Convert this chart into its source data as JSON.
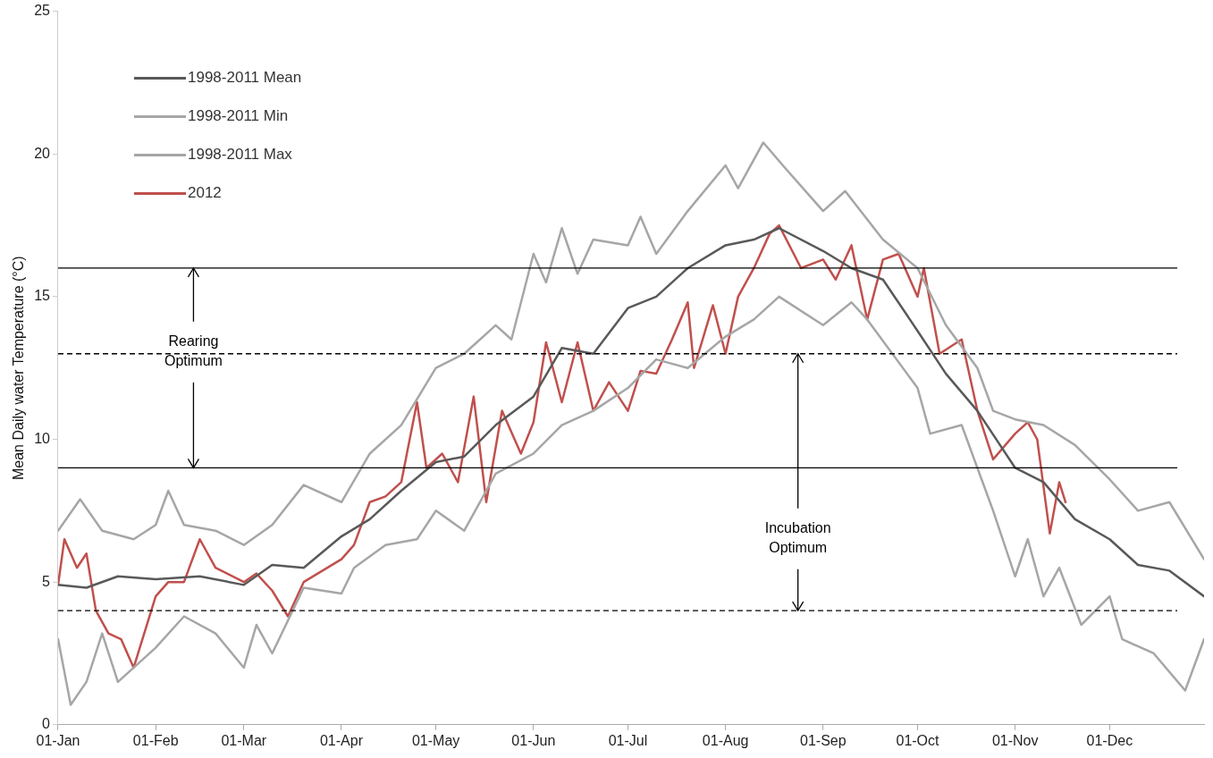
{
  "chart_data": {
    "type": "line",
    "ylabel": "Mean Daily water Temperature (°C)",
    "xlim": [
      "--01-01",
      "--12-31"
    ],
    "xticks": [
      {
        "value": "--01-01",
        "label": "01-Jan"
      },
      {
        "value": "--02-01",
        "label": "01-Feb"
      },
      {
        "value": "--03-01",
        "label": "01-Mar"
      },
      {
        "value": "--04-01",
        "label": "01-Apr"
      },
      {
        "value": "--05-01",
        "label": "01-May"
      },
      {
        "value": "--06-01",
        "label": "01-Jun"
      },
      {
        "value": "--07-01",
        "label": "01-Jul"
      },
      {
        "value": "--08-01",
        "label": "01-Aug"
      },
      {
        "value": "--09-01",
        "label": "01-Sep"
      },
      {
        "value": "--10-01",
        "label": "01-Oct"
      },
      {
        "value": "--11-01",
        "label": "01-Nov"
      },
      {
        "value": "--12-01",
        "label": "01-Dec"
      }
    ],
    "ylim": [
      0,
      25
    ],
    "yticks": [
      0,
      5,
      10,
      15,
      20,
      25
    ],
    "grid": false,
    "legend": "top left",
    "marker": "none",
    "line_style": "solid",
    "series": [
      {
        "name": "1998-2011 Mean",
        "color": "#595959",
        "x": [
          "--01-01",
          "--01-10",
          "--01-20",
          "--02-01",
          "--02-15",
          "--03-01",
          "--03-10",
          "--03-20",
          "--04-01",
          "--04-10",
          "--04-20",
          "--05-01",
          "--05-10",
          "--05-20",
          "--06-01",
          "--06-10",
          "--06-20",
          "--07-01",
          "--07-10",
          "--07-20",
          "--08-01",
          "--08-10",
          "--08-18",
          "--09-01",
          "--09-10",
          "--09-20",
          "--10-01",
          "--10-10",
          "--10-20",
          "--11-01",
          "--11-10",
          "--11-20",
          "--12-01",
          "--12-10",
          "--12-20",
          "--12-31"
        ],
        "values": [
          4.9,
          4.8,
          5.2,
          5.1,
          5.2,
          4.9,
          5.6,
          5.5,
          6.6,
          7.2,
          8.2,
          9.2,
          9.4,
          10.5,
          11.5,
          13.2,
          13.0,
          14.6,
          15.0,
          16.0,
          16.8,
          17.0,
          17.4,
          16.6,
          16.0,
          15.6,
          13.8,
          12.3,
          11.0,
          9.0,
          8.5,
          7.2,
          6.5,
          5.6,
          5.4,
          4.5
        ]
      },
      {
        "name": "1998-2011 Min",
        "color": "#a6a6a6",
        "x": [
          "--01-01",
          "--01-05",
          "--01-10",
          "--01-15",
          "--01-20",
          "--02-01",
          "--02-10",
          "--02-20",
          "--03-01",
          "--03-05",
          "--03-10",
          "--03-20",
          "--04-01",
          "--04-05",
          "--04-15",
          "--04-25",
          "--05-01",
          "--05-10",
          "--05-20",
          "--06-01",
          "--06-10",
          "--06-20",
          "--07-01",
          "--07-10",
          "--07-20",
          "--08-01",
          "--08-10",
          "--08-18",
          "--09-01",
          "--09-10",
          "--09-15",
          "--10-01",
          "--10-05",
          "--10-15",
          "--10-20",
          "--10-25",
          "--11-01",
          "--11-05",
          "--11-10",
          "--11-15",
          "--11-22",
          "--12-01",
          "--12-05",
          "--12-15",
          "--12-25",
          "--12-31"
        ],
        "values": [
          3.0,
          0.7,
          1.5,
          3.2,
          1.5,
          2.7,
          3.8,
          3.2,
          2.0,
          3.5,
          2.5,
          4.8,
          4.6,
          5.5,
          6.3,
          6.5,
          7.5,
          6.8,
          8.8,
          9.5,
          10.5,
          11.0,
          11.8,
          12.8,
          12.5,
          13.6,
          14.2,
          15.0,
          14.0,
          14.8,
          14.2,
          11.8,
          10.2,
          10.5,
          9.0,
          7.5,
          5.2,
          6.5,
          4.5,
          5.5,
          3.5,
          4.5,
          3.0,
          2.5,
          1.2,
          3.0
        ]
      },
      {
        "name": "1998-2011 Max",
        "color": "#a6a6a6",
        "x": [
          "--01-01",
          "--01-08",
          "--01-15",
          "--01-25",
          "--02-01",
          "--02-05",
          "--02-10",
          "--02-20",
          "--03-01",
          "--03-10",
          "--03-20",
          "--04-01",
          "--04-10",
          "--04-20",
          "--05-01",
          "--05-10",
          "--05-20",
          "--05-25",
          "--06-01",
          "--06-05",
          "--06-10",
          "--06-15",
          "--06-20",
          "--07-01",
          "--07-05",
          "--07-10",
          "--07-20",
          "--08-01",
          "--08-05",
          "--08-13",
          "--08-20",
          "--09-01",
          "--09-08",
          "--09-20",
          "--10-01",
          "--10-10",
          "--10-20",
          "--10-25",
          "--11-01",
          "--11-10",
          "--11-20",
          "--12-01",
          "--12-10",
          "--12-20",
          "--12-31"
        ],
        "values": [
          6.8,
          7.9,
          6.8,
          6.5,
          7.0,
          8.2,
          7.0,
          6.8,
          6.3,
          7.0,
          8.4,
          7.8,
          9.5,
          10.5,
          12.5,
          13.0,
          14.0,
          13.5,
          16.5,
          15.5,
          17.4,
          15.8,
          17.0,
          16.8,
          17.8,
          16.5,
          18.0,
          19.6,
          18.8,
          20.4,
          19.5,
          18.0,
          18.7,
          17.0,
          16.0,
          14.0,
          12.5,
          11.0,
          10.7,
          10.5,
          9.8,
          8.6,
          7.5,
          7.8,
          5.8
        ]
      },
      {
        "name": "2012",
        "color": "#c0504d",
        "x": [
          "--01-01",
          "--01-03",
          "--01-07",
          "--01-10",
          "--01-13",
          "--01-17",
          "--01-21",
          "--01-25",
          "--02-01",
          "--02-05",
          "--02-10",
          "--02-15",
          "--02-20",
          "--03-01",
          "--03-05",
          "--03-10",
          "--03-15",
          "--03-20",
          "--04-01",
          "--04-05",
          "--04-10",
          "--04-15",
          "--04-20",
          "--04-25",
          "--04-28",
          "--05-03",
          "--05-08",
          "--05-13",
          "--05-17",
          "--05-22",
          "--05-28",
          "--06-01",
          "--06-05",
          "--06-10",
          "--06-15",
          "--06-20",
          "--06-25",
          "--07-01",
          "--07-05",
          "--07-10",
          "--07-15",
          "--07-20",
          "--07-22",
          "--07-28",
          "--08-01",
          "--08-05",
          "--08-10",
          "--08-15",
          "--08-18",
          "--08-25",
          "--09-01",
          "--09-05",
          "--09-10",
          "--09-15",
          "--09-20",
          "--09-25",
          "--10-01",
          "--10-03",
          "--10-08",
          "--10-15",
          "--10-20",
          "--10-25",
          "--11-01",
          "--11-05",
          "--11-08",
          "--11-12",
          "--11-15",
          "--11-17"
        ],
        "values": [
          4.9,
          6.5,
          5.5,
          6.0,
          4.0,
          3.2,
          3.0,
          2.0,
          4.5,
          5.0,
          5.0,
          6.5,
          5.5,
          5.0,
          5.3,
          4.7,
          3.8,
          5.0,
          5.8,
          6.3,
          7.8,
          8.0,
          8.5,
          11.3,
          9.0,
          9.5,
          8.5,
          11.5,
          7.8,
          11.0,
          9.5,
          10.6,
          13.4,
          11.3,
          13.4,
          11.0,
          12.0,
          11.0,
          12.4,
          12.3,
          13.5,
          14.8,
          12.5,
          14.7,
          13.0,
          15.0,
          16.0,
          17.2,
          17.5,
          16.0,
          16.3,
          15.6,
          16.8,
          14.2,
          16.3,
          16.5,
          15.0,
          16.0,
          13.0,
          13.5,
          11.0,
          9.3,
          10.2,
          10.6,
          10.0,
          6.7,
          8.5,
          7.8
        ]
      }
    ],
    "ref_lines": [
      {
        "axis": "y",
        "value": 16,
        "line_style": "solid",
        "color": "#000000"
      },
      {
        "axis": "y",
        "value": 13,
        "line_style": "dashed",
        "color": "#000000"
      },
      {
        "axis": "y",
        "value": 9,
        "line_style": "solid",
        "color": "#000000"
      },
      {
        "axis": "y",
        "value": 4,
        "line_style": "dashed",
        "color": "#000000"
      }
    ],
    "annotations": [
      {
        "text": "Rearing Optimum",
        "x": "--02-13",
        "y": 16
      },
      {
        "text": "Incubation Optimum",
        "x": "--08-24",
        "y": 13
      }
    ]
  }
}
